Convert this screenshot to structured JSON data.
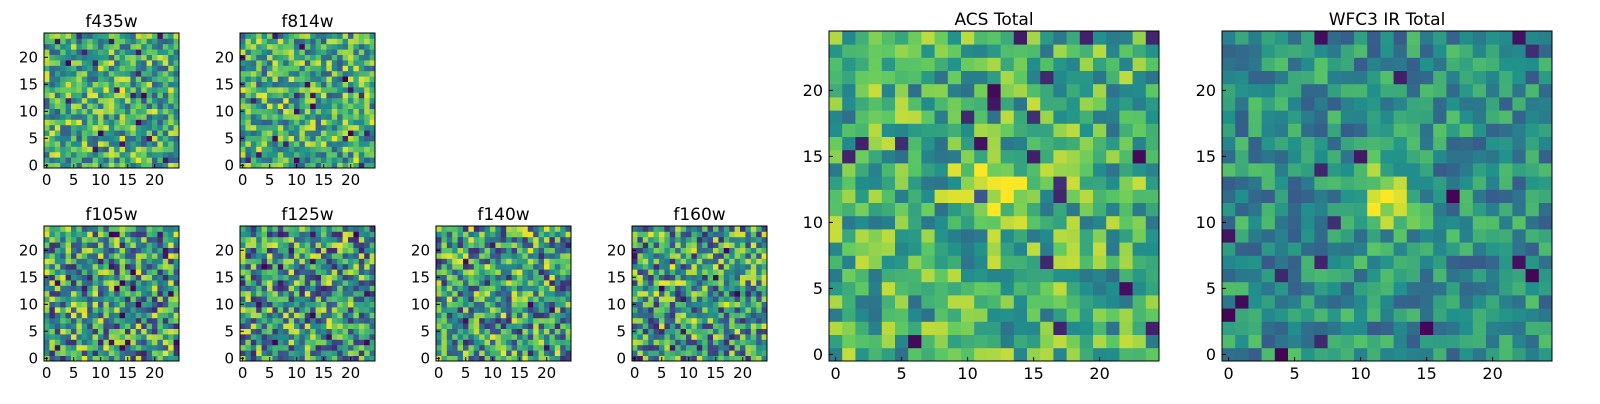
{
  "chart_data": [
    {
      "type": "heatmap",
      "title": "f435w",
      "xlabel": "",
      "ylabel": "",
      "xlim": [
        0,
        24
      ],
      "ylim": [
        0,
        24
      ],
      "grid": false,
      "xticks": [
        "0",
        "5",
        "10",
        "15",
        "20"
      ],
      "yticks": [
        "0",
        "5",
        "10",
        "15",
        "20"
      ],
      "colormap": "viridis",
      "colormap_range": "mostly green-yellow"
    },
    {
      "type": "heatmap",
      "title": "f814w",
      "xlabel": "",
      "ylabel": "",
      "xlim": [
        0,
        24
      ],
      "ylim": [
        0,
        24
      ],
      "grid": false,
      "xticks": [
        "0",
        "5",
        "10",
        "15",
        "20"
      ],
      "yticks": [
        "0",
        "5",
        "10",
        "15",
        "20"
      ],
      "colormap": "viridis",
      "colormap_range": "mostly green-yellow"
    },
    {
      "type": "heatmap",
      "title": "f105w",
      "xlabel": "",
      "ylabel": "",
      "xlim": [
        0,
        24
      ],
      "ylim": [
        0,
        24
      ],
      "grid": false,
      "xticks": [
        "0",
        "5",
        "10",
        "15",
        "20"
      ],
      "yticks": [
        "0",
        "5",
        "10",
        "15",
        "20"
      ],
      "colormap": "viridis",
      "colormap_range": "mixed teal-green-yellow"
    },
    {
      "type": "heatmap",
      "title": "f125w",
      "xlabel": "",
      "ylabel": "",
      "xlim": [
        0,
        24
      ],
      "ylim": [
        0,
        24
      ],
      "grid": false,
      "xticks": [
        "0",
        "5",
        "10",
        "15",
        "20"
      ],
      "yticks": [
        "0",
        "5",
        "10",
        "15",
        "20"
      ],
      "colormap": "viridis",
      "colormap_range": "mixed teal-green-yellow"
    },
    {
      "type": "heatmap",
      "title": "f140w",
      "xlabel": "",
      "ylabel": "",
      "xlim": [
        0,
        24
      ],
      "ylim": [
        0,
        24
      ],
      "grid": false,
      "xticks": [
        "0",
        "5",
        "10",
        "15",
        "20"
      ],
      "yticks": [
        "0",
        "5",
        "10",
        "15",
        "20"
      ],
      "colormap": "viridis",
      "colormap_range": "mixed teal-green-yellow"
    },
    {
      "type": "heatmap",
      "title": "f160w",
      "xlabel": "",
      "ylabel": "",
      "xlim": [
        0,
        24
      ],
      "ylim": [
        0,
        24
      ],
      "grid": false,
      "xticks": [
        "0",
        "5",
        "10",
        "15",
        "20"
      ],
      "yticks": [
        "0",
        "5",
        "10",
        "15",
        "20"
      ],
      "colormap": "viridis",
      "colormap_range": "mixed teal-green-yellow"
    },
    {
      "type": "heatmap",
      "title": "ACS Total",
      "xlabel": "",
      "ylabel": "",
      "xlim": [
        0,
        24
      ],
      "ylim": [
        0,
        24
      ],
      "grid": false,
      "xticks": [
        "0",
        "5",
        "10",
        "15",
        "20"
      ],
      "yticks": [
        "0",
        "5",
        "10",
        "15",
        "20"
      ],
      "colormap": "viridis",
      "colormap_range": "mostly green-yellow",
      "bright_spot": {
        "x": 12,
        "y": 13
      }
    },
    {
      "type": "heatmap",
      "title": "WFC3 IR Total",
      "xlabel": "",
      "ylabel": "",
      "xlim": [
        0,
        24
      ],
      "ylim": [
        0,
        24
      ],
      "grid": false,
      "xticks": [
        "0",
        "5",
        "10",
        "15",
        "20"
      ],
      "yticks": [
        "0",
        "5",
        "10",
        "15",
        "20"
      ],
      "colormap": "viridis",
      "colormap_range": "teal-green with yellow spot",
      "bright_spot": {
        "x": 12,
        "y": 12
      }
    }
  ],
  "colors": {
    "colormap_stops": [
      "#440154",
      "#3b528b",
      "#21918c",
      "#5ec962",
      "#fde725"
    ]
  }
}
